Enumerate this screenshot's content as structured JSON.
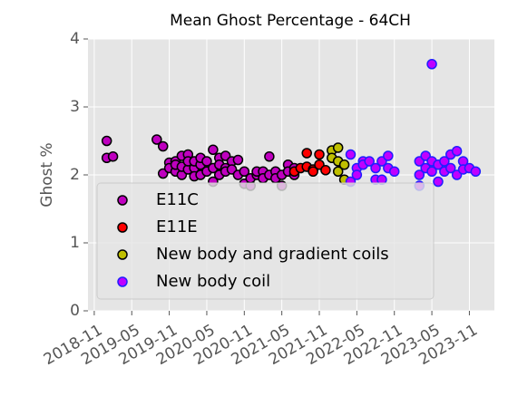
{
  "chart_data": {
    "type": "scatter",
    "title": "Mean Ghost Percentage - 64CH",
    "y_label": "Ghost %",
    "ylim": [
      0,
      4
    ],
    "yticks": [
      0,
      1,
      2,
      3,
      4
    ],
    "xlim": [
      "2018-10",
      "2024-03"
    ],
    "xticks": [
      "2018-11",
      "2019-05",
      "2019-11",
      "2020-05",
      "2020-11",
      "2021-05",
      "2021-11",
      "2022-05",
      "2022-11",
      "2023-05",
      "2023-11"
    ],
    "grid": true,
    "legend": "lower left",
    "series": [
      {
        "name": "E11C",
        "color": "#bf00bf",
        "edgecolor": "#000000",
        "x": [
          "2019-01",
          "2019-01",
          "2019-02",
          "2019-09",
          "2019-10",
          "2019-10",
          "2019-11",
          "2019-11",
          "2019-12",
          "2019-12",
          "2019-12",
          "2020-01",
          "2020-01",
          "2020-01",
          "2020-02",
          "2020-02",
          "2020-02",
          "2020-03",
          "2020-03",
          "2020-03",
          "2020-04",
          "2020-04",
          "2020-04",
          "2020-05",
          "2020-05",
          "2020-06",
          "2020-06",
          "2020-06",
          "2020-07",
          "2020-07",
          "2020-07",
          "2020-08",
          "2020-08",
          "2020-08",
          "2020-09",
          "2020-09",
          "2020-10",
          "2020-10",
          "2020-11",
          "2020-11",
          "2020-12",
          "2020-12",
          "2021-01",
          "2021-01",
          "2021-02",
          "2021-02",
          "2021-03",
          "2021-03",
          "2021-04",
          "2021-04",
          "2021-05",
          "2021-05",
          "2021-06",
          "2021-06",
          "2021-07",
          "2021-07"
        ],
        "values": [
          2.5,
          2.25,
          2.27,
          2.52,
          2.42,
          2.02,
          2.18,
          2.1,
          2.2,
          2.05,
          2.15,
          2.28,
          2.0,
          2.12,
          2.3,
          2.08,
          2.2,
          2.1,
          1.98,
          2.2,
          2.0,
          2.15,
          2.25,
          2.05,
          2.2,
          2.37,
          2.1,
          1.9,
          2.25,
          2.0,
          2.15,
          2.28,
          2.1,
          2.05,
          2.2,
          2.08,
          2.22,
          2.0,
          1.87,
          2.05,
          1.84,
          1.95,
          2.0,
          2.05,
          2.05,
          1.95,
          2.27,
          2.0,
          2.05,
          1.95,
          1.84,
          2.0,
          2.15,
          2.05,
          2.1,
          2.0
        ]
      },
      {
        "name": "E11E",
        "color": "#ff0000",
        "edgecolor": "#000000",
        "x": [
          "2021-07",
          "2021-08",
          "2021-09",
          "2021-09",
          "2021-10",
          "2021-10",
          "2021-11",
          "2021-11",
          "2021-12"
        ],
        "values": [
          2.05,
          2.1,
          2.32,
          2.12,
          2.08,
          2.05,
          2.3,
          2.15,
          2.07
        ]
      },
      {
        "name": "New body and gradient coils",
        "color": "#bfbf00",
        "edgecolor": "#000000",
        "x": [
          "2022-01",
          "2022-01",
          "2022-02",
          "2022-02",
          "2022-02",
          "2022-03",
          "2022-03"
        ],
        "values": [
          2.36,
          2.25,
          2.4,
          2.2,
          2.05,
          2.15,
          1.93
        ]
      },
      {
        "name": "New body coil",
        "color": "#bf00ff",
        "edgecolor": "#1f1fff",
        "x": [
          "2022-04",
          "2022-04",
          "2022-05",
          "2022-05",
          "2022-06",
          "2022-06",
          "2022-07",
          "2022-08",
          "2022-08",
          "2022-09",
          "2022-09",
          "2022-10",
          "2022-10",
          "2022-11",
          "2023-03",
          "2023-03",
          "2023-03",
          "2023-04",
          "2023-04",
          "2023-05",
          "2023-05",
          "2023-05",
          "2023-06",
          "2023-06",
          "2023-07",
          "2023-07",
          "2023-08",
          "2023-08",
          "2023-09",
          "2023-09",
          "2023-10",
          "2023-10",
          "2023-11",
          "2023-12"
        ],
        "values": [
          2.3,
          1.9,
          2.1,
          2.0,
          2.2,
          2.15,
          2.2,
          2.1,
          1.93,
          2.2,
          1.93,
          2.28,
          2.1,
          2.05,
          2.0,
          2.2,
          1.84,
          2.28,
          2.1,
          3.63,
          2.2,
          2.05,
          2.15,
          1.9,
          2.2,
          2.05,
          2.3,
          2.1,
          2.35,
          2.0,
          2.2,
          2.08,
          2.1,
          2.05
        ]
      }
    ]
  }
}
